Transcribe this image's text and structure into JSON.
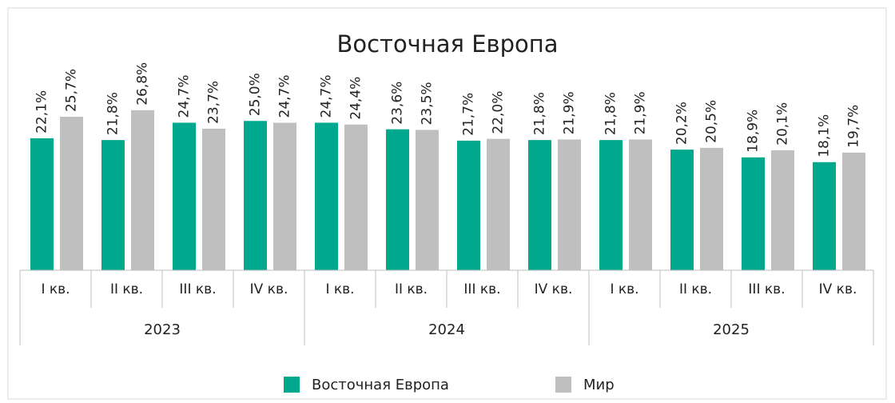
{
  "chart_data": {
    "type": "bar",
    "title": "Восточная Европа",
    "category_groups": [
      {
        "name": "2023",
        "categories": [
          "I кв.",
          "II кв.",
          "III кв.",
          "IV кв."
        ]
      },
      {
        "name": "2024",
        "categories": [
          "I кв.",
          "II кв.",
          "III кв.",
          "IV кв."
        ]
      },
      {
        "name": "2025",
        "categories": [
          "I кв.",
          "II кв.",
          "III кв.",
          "IV кв."
        ]
      }
    ],
    "series": [
      {
        "name": "Восточная Европа",
        "color": "#00a88e",
        "values": [
          22.1,
          21.8,
          24.7,
          25.0,
          24.7,
          23.6,
          21.7,
          21.8,
          21.8,
          20.2,
          18.9,
          18.1
        ],
        "value_labels": [
          "22,1%",
          "21,8%",
          "24,7%",
          "25,0%",
          "24,7%",
          "23,6%",
          "21,7%",
          "21,8%",
          "21,8%",
          "20,2%",
          "18,9%",
          "18,1%"
        ]
      },
      {
        "name": "Мир",
        "color": "#bfbfbf",
        "values": [
          25.7,
          26.8,
          23.7,
          24.7,
          24.4,
          23.5,
          22.0,
          21.9,
          21.9,
          20.5,
          20.1,
          19.7
        ],
        "value_labels": [
          "25,7%",
          "26,8%",
          "23,7%",
          "24,7%",
          "24,4%",
          "23,5%",
          "22,0%",
          "21,9%",
          "21,9%",
          "20,5%",
          "20,1%",
          "19,7%"
        ]
      }
    ],
    "legend": "bottom"
  }
}
